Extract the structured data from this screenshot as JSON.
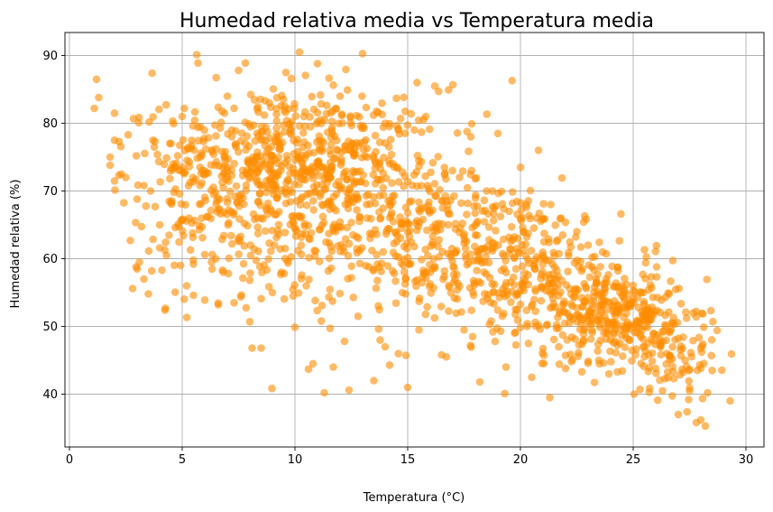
{
  "chart_data": {
    "type": "scatter",
    "title": "Humedad relativa media vs Temperatura media",
    "xlabel": "Temperatura (°C)",
    "ylabel": "Humedad relativa (%)",
    "xlim": [
      -0.2,
      30.8
    ],
    "ylim": [
      32.2,
      93.4
    ],
    "x_ticks": [
      0,
      5,
      10,
      15,
      20,
      25,
      30
    ],
    "y_ticks": [
      40,
      50,
      60,
      70,
      80,
      90
    ],
    "grid": true,
    "point_color": "#ff8c00",
    "point_opacity": 0.6,
    "sample_points": [
      [
        1.1,
        82.2
      ],
      [
        1.2,
        86.5
      ],
      [
        1.3,
        83.8
      ],
      [
        1.8,
        73.8
      ],
      [
        1.8,
        75.0
      ],
      [
        2.0,
        81.5
      ],
      [
        2.0,
        77.5
      ],
      [
        2.0,
        71.5
      ],
      [
        2.2,
        77.3
      ],
      [
        2.3,
        72.5
      ],
      [
        2.5,
        72.0
      ],
      [
        2.7,
        62.7
      ],
      [
        2.8,
        55.6
      ],
      [
        3.0,
        68.8
      ],
      [
        3.0,
        58.5
      ],
      [
        3.1,
        59.5
      ],
      [
        3.3,
        57.0
      ],
      [
        3.5,
        54.8
      ],
      [
        3.6,
        70.0
      ],
      [
        3.7,
        77.5
      ],
      [
        3.8,
        67.7
      ],
      [
        4.0,
        65.0
      ],
      [
        4.0,
        61.6
      ],
      [
        4.1,
        58.3
      ],
      [
        4.3,
        60.5
      ],
      [
        4.5,
        77.0
      ],
      [
        4.6,
        74.0
      ],
      [
        4.7,
        70.3
      ],
      [
        5.0,
        81.0
      ],
      [
        5.0,
        65.7
      ],
      [
        5.2,
        56.0
      ],
      [
        5.3,
        66.0
      ],
      [
        5.5,
        54.6
      ],
      [
        5.5,
        59.2
      ],
      [
        5.7,
        88.9
      ],
      [
        5.8,
        75.0
      ],
      [
        6.0,
        53.9
      ],
      [
        6.3,
        59.5
      ],
      [
        6.4,
        69.5
      ],
      [
        6.6,
        53.2
      ],
      [
        7.0,
        84.0
      ],
      [
        7.2,
        78.0
      ],
      [
        7.3,
        53.5
      ],
      [
        7.5,
        63.0
      ],
      [
        7.5,
        87.8
      ],
      [
        7.8,
        88.9
      ],
      [
        8.0,
        56.8
      ],
      [
        8.0,
        50.7
      ],
      [
        8.1,
        46.8
      ],
      [
        8.5,
        46.8
      ],
      [
        8.5,
        66.0
      ],
      [
        8.8,
        70.5
      ],
      [
        9.0,
        55.0
      ],
      [
        9.4,
        58.0
      ],
      [
        9.6,
        87.5
      ],
      [
        9.8,
        79.0
      ],
      [
        10.0,
        49.9
      ],
      [
        10.2,
        90.5
      ],
      [
        10.3,
        74.3
      ],
      [
        10.5,
        56.0
      ],
      [
        10.6,
        43.7
      ],
      [
        10.8,
        44.5
      ],
      [
        11.0,
        88.8
      ],
      [
        11.2,
        53.1
      ],
      [
        11.3,
        40.2
      ],
      [
        11.5,
        68.5
      ],
      [
        11.7,
        44.0
      ],
      [
        12.0,
        84.0
      ],
      [
        12.2,
        47.8
      ],
      [
        12.4,
        40.6
      ],
      [
        12.5,
        57.2
      ],
      [
        12.8,
        51.5
      ],
      [
        13.0,
        90.3
      ],
      [
        13.2,
        75.0
      ],
      [
        13.5,
        42.0
      ],
      [
        13.8,
        66.0
      ],
      [
        14.0,
        47.0
      ],
      [
        14.2,
        44.3
      ],
      [
        14.5,
        83.7
      ],
      [
        14.8,
        59.0
      ],
      [
        15.0,
        41.0
      ],
      [
        15.3,
        79.0
      ],
      [
        15.5,
        49.5
      ],
      [
        15.8,
        81.0
      ],
      [
        16.0,
        58.0
      ],
      [
        16.2,
        85.5
      ],
      [
        16.5,
        45.8
      ],
      [
        16.8,
        65.0
      ],
      [
        17.0,
        85.7
      ],
      [
        17.3,
        72.0
      ],
      [
        17.5,
        49.5
      ],
      [
        17.8,
        78.0
      ],
      [
        18.0,
        63.5
      ],
      [
        18.2,
        41.8
      ],
      [
        18.5,
        70.0
      ],
      [
        18.8,
        55.0
      ],
      [
        19.0,
        78.5
      ],
      [
        19.3,
        40.1
      ],
      [
        19.5,
        67.0
      ],
      [
        19.8,
        58.5
      ],
      [
        20.0,
        73.5
      ],
      [
        20.3,
        50.0
      ],
      [
        20.5,
        42.5
      ],
      [
        20.8,
        76.0
      ],
      [
        21.0,
        60.5
      ],
      [
        21.3,
        39.5
      ],
      [
        21.5,
        57.0
      ],
      [
        21.8,
        66.0
      ],
      [
        22.0,
        43.8
      ],
      [
        22.3,
        53.0
      ],
      [
        22.5,
        64.0
      ],
      [
        22.8,
        48.0
      ],
      [
        23.0,
        62.0
      ],
      [
        23.3,
        52.0
      ],
      [
        23.5,
        44.5
      ],
      [
        23.8,
        57.0
      ],
      [
        24.0,
        48.0
      ],
      [
        24.3,
        43.3
      ],
      [
        24.5,
        56.0
      ],
      [
        24.8,
        53.0
      ],
      [
        25.0,
        50.0
      ],
      [
        25.3,
        40.7
      ],
      [
        25.5,
        47.0
      ],
      [
        25.8,
        51.0
      ],
      [
        26.0,
        43.8
      ],
      [
        26.3,
        40.5
      ],
      [
        26.5,
        46.0
      ],
      [
        26.8,
        42.3
      ],
      [
        27.0,
        37.0
      ],
      [
        27.3,
        45.0
      ],
      [
        27.5,
        40.5
      ],
      [
        27.8,
        35.8
      ],
      [
        28.0,
        36.2
      ],
      [
        28.2,
        35.3
      ],
      [
        28.3,
        40.2
      ],
      [
        28.5,
        43.5
      ],
      [
        29.3,
        39.0
      ]
    ]
  }
}
